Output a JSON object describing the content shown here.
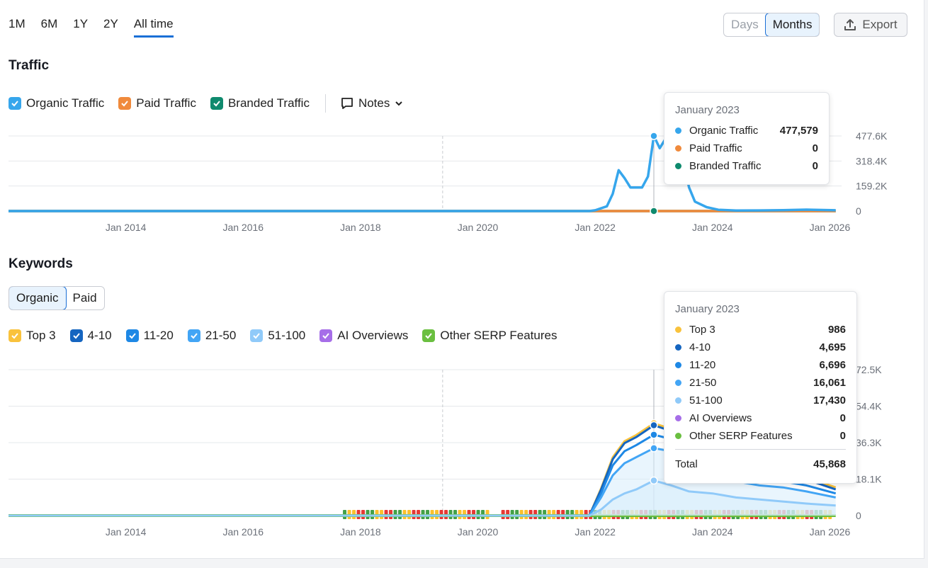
{
  "period_tabs": [
    "1M",
    "6M",
    "1Y",
    "2Y",
    "All time"
  ],
  "granularity": {
    "days": "Days",
    "months": "Months"
  },
  "export_label": "Export",
  "traffic": {
    "title": "Traffic",
    "legend": [
      {
        "label": "Organic Traffic",
        "color": "#36a6ec"
      },
      {
        "label": "Paid Traffic",
        "color": "#f08a3c"
      },
      {
        "label": "Branded Traffic",
        "color": "#0f8a6e"
      }
    ],
    "notes_label": "Notes",
    "tooltip": {
      "title": "January 2023",
      "rows": [
        {
          "name": "Organic Traffic",
          "value": "477,579",
          "color": "#36a6ec"
        },
        {
          "name": "Paid Traffic",
          "value": "0",
          "color": "#f08a3c"
        },
        {
          "name": "Branded Traffic",
          "value": "0",
          "color": "#0f8a6e"
        }
      ]
    }
  },
  "keywords": {
    "title": "Keywords",
    "tabs": {
      "organic": "Organic",
      "paid": "Paid"
    },
    "legend": [
      {
        "label": "Top 3",
        "color": "#f9c23c"
      },
      {
        "label": "4-10",
        "color": "#1565c0"
      },
      {
        "label": "11-20",
        "color": "#1e88e5"
      },
      {
        "label": "21-50",
        "color": "#42a5f5"
      },
      {
        "label": "51-100",
        "color": "#90caf9"
      },
      {
        "label": "AI Overviews",
        "color": "#a66ee8"
      },
      {
        "label": "Other SERP Features",
        "color": "#6abf40"
      }
    ],
    "tooltip": {
      "title": "January 2023",
      "rows": [
        {
          "name": "Top 3",
          "value": "986",
          "color": "#f9c23c"
        },
        {
          "name": "4-10",
          "value": "4,695",
          "color": "#1565c0"
        },
        {
          "name": "11-20",
          "value": "6,696",
          "color": "#1e88e5"
        },
        {
          "name": "21-50",
          "value": "16,061",
          "color": "#42a5f5"
        },
        {
          "name": "51-100",
          "value": "17,430",
          "color": "#90caf9"
        },
        {
          "name": "AI Overviews",
          "value": "0",
          "color": "#a66ee8"
        },
        {
          "name": "Other SERP Features",
          "value": "0",
          "color": "#6abf40"
        }
      ],
      "total_label": "Total",
      "total_value": "45,868"
    }
  },
  "chart_data": [
    {
      "type": "line",
      "chart": "traffic",
      "x_ticks": [
        "Jan 2014",
        "Jan 2016",
        "Jan 2018",
        "Jan 2020",
        "Jan 2022",
        "Jan 2024",
        "Jan 2026"
      ],
      "y_ticks": [
        "0",
        "159.2K",
        "318.4K",
        "477.6K"
      ],
      "ylim": [
        0,
        477600
      ],
      "xlim": [
        2012.0,
        2026.2
      ],
      "series": [
        {
          "name": "Organic Traffic",
          "color": "#36a6ec",
          "points": [
            [
              2012.0,
              0
            ],
            [
              2021.9,
              0
            ],
            [
              2022.0,
              5000
            ],
            [
              2022.2,
              30000
            ],
            [
              2022.3,
              110000
            ],
            [
              2022.4,
              260000
            ],
            [
              2022.5,
              210000
            ],
            [
              2022.6,
              150000
            ],
            [
              2022.8,
              150000
            ],
            [
              2022.9,
              220000
            ],
            [
              2023.0,
              477579
            ],
            [
              2023.1,
              400000
            ],
            [
              2023.2,
              460000
            ],
            [
              2023.3,
              380000
            ],
            [
              2023.5,
              320000
            ],
            [
              2023.6,
              150000
            ],
            [
              2023.7,
              60000
            ],
            [
              2023.9,
              25000
            ],
            [
              2024.1,
              8000
            ],
            [
              2024.4,
              3000
            ],
            [
              2024.8,
              4000
            ],
            [
              2025.2,
              6000
            ],
            [
              2025.6,
              9000
            ],
            [
              2026.1,
              5000
            ]
          ]
        },
        {
          "name": "Paid Traffic",
          "color": "#f08a3c",
          "points": [
            [
              2012.0,
              0
            ],
            [
              2026.1,
              0
            ]
          ]
        },
        {
          "name": "Branded Traffic",
          "color": "#0f8a6e",
          "points": [
            [
              2012.0,
              0
            ],
            [
              2026.1,
              0
            ]
          ]
        }
      ]
    },
    {
      "type": "area",
      "chart": "keywords",
      "x_ticks": [
        "Jan 2014",
        "Jan 2016",
        "Jan 2018",
        "Jan 2020",
        "Jan 2022",
        "Jan 2024",
        "Jan 2026"
      ],
      "y_ticks": [
        "0",
        "18.1K",
        "36.3K",
        "54.4K",
        "72.5K"
      ],
      "ylim": [
        0,
        72500
      ],
      "xlim": [
        2012.0,
        2026.2
      ],
      "series": [
        {
          "name": "51-100",
          "color": "#90caf9",
          "points": [
            [
              2012.0,
              0
            ],
            [
              2021.9,
              0
            ],
            [
              2022.1,
              3000
            ],
            [
              2022.3,
              8000
            ],
            [
              2022.5,
              11000
            ],
            [
              2022.7,
              13000
            ],
            [
              2023.0,
              17430
            ],
            [
              2023.3,
              15000
            ],
            [
              2023.6,
              12000
            ],
            [
              2024.0,
              11000
            ],
            [
              2024.4,
              9000
            ],
            [
              2024.8,
              8000
            ],
            [
              2025.2,
              7000
            ],
            [
              2025.6,
              6000
            ],
            [
              2026.1,
              5000
            ]
          ]
        },
        {
          "name": "21-50",
          "color": "#42a5f5",
          "points": [
            [
              2012.0,
              0
            ],
            [
              2021.9,
              0
            ],
            [
              2022.1,
              9000
            ],
            [
              2022.3,
              20000
            ],
            [
              2022.5,
              26000
            ],
            [
              2022.7,
              29000
            ],
            [
              2023.0,
              33491
            ],
            [
              2023.3,
              32000
            ],
            [
              2023.6,
              26000
            ],
            [
              2024.0,
              22000
            ],
            [
              2024.4,
              17000
            ],
            [
              2024.8,
              15000
            ],
            [
              2025.2,
              14000
            ],
            [
              2025.6,
              12000
            ],
            [
              2026.1,
              9000
            ]
          ]
        },
        {
          "name": "11-20",
          "color": "#1e88e5",
          "points": [
            [
              2012.0,
              0
            ],
            [
              2021.9,
              0
            ],
            [
              2022.1,
              11000
            ],
            [
              2022.3,
              25000
            ],
            [
              2022.5,
              32000
            ],
            [
              2022.7,
              35000
            ],
            [
              2023.0,
              40187
            ],
            [
              2023.3,
              38000
            ],
            [
              2023.6,
              31000
            ],
            [
              2024.0,
              27000
            ],
            [
              2024.4,
              21000
            ],
            [
              2024.8,
              19000
            ],
            [
              2025.2,
              17000
            ],
            [
              2025.6,
              15000
            ],
            [
              2026.1,
              11000
            ]
          ]
        },
        {
          "name": "4-10",
          "color": "#1565c0",
          "points": [
            [
              2012.0,
              0
            ],
            [
              2021.9,
              0
            ],
            [
              2022.1,
              13000
            ],
            [
              2022.3,
              28000
            ],
            [
              2022.5,
              36000
            ],
            [
              2022.7,
              39000
            ],
            [
              2023.0,
              44882
            ],
            [
              2023.3,
              42000
            ],
            [
              2023.6,
              35000
            ],
            [
              2024.0,
              30000
            ],
            [
              2024.4,
              24000
            ],
            [
              2024.8,
              22000
            ],
            [
              2025.2,
              20000
            ],
            [
              2025.6,
              18000
            ],
            [
              2026.1,
              13000
            ]
          ]
        },
        {
          "name": "Top 3",
          "color": "#f9c23c",
          "points": [
            [
              2012.0,
              0
            ],
            [
              2021.9,
              0
            ],
            [
              2022.1,
              13500
            ],
            [
              2022.3,
              29000
            ],
            [
              2022.5,
              37000
            ],
            [
              2022.7,
              40000
            ],
            [
              2023.0,
              45868
            ],
            [
              2023.3,
              43000
            ],
            [
              2023.6,
              36000
            ],
            [
              2024.0,
              31000
            ],
            [
              2024.4,
              25000
            ],
            [
              2024.8,
              23000
            ],
            [
              2025.2,
              21000
            ],
            [
              2025.6,
              19000
            ],
            [
              2026.1,
              14000
            ]
          ]
        },
        {
          "name": "AI Overviews",
          "color": "#a66ee8",
          "points": [
            [
              2012.0,
              0
            ],
            [
              2026.1,
              0
            ]
          ]
        },
        {
          "name": "Other SERP Features",
          "color": "#6abf40",
          "points": [
            [
              2012.0,
              0
            ],
            [
              2026.1,
              0
            ]
          ]
        }
      ]
    }
  ]
}
